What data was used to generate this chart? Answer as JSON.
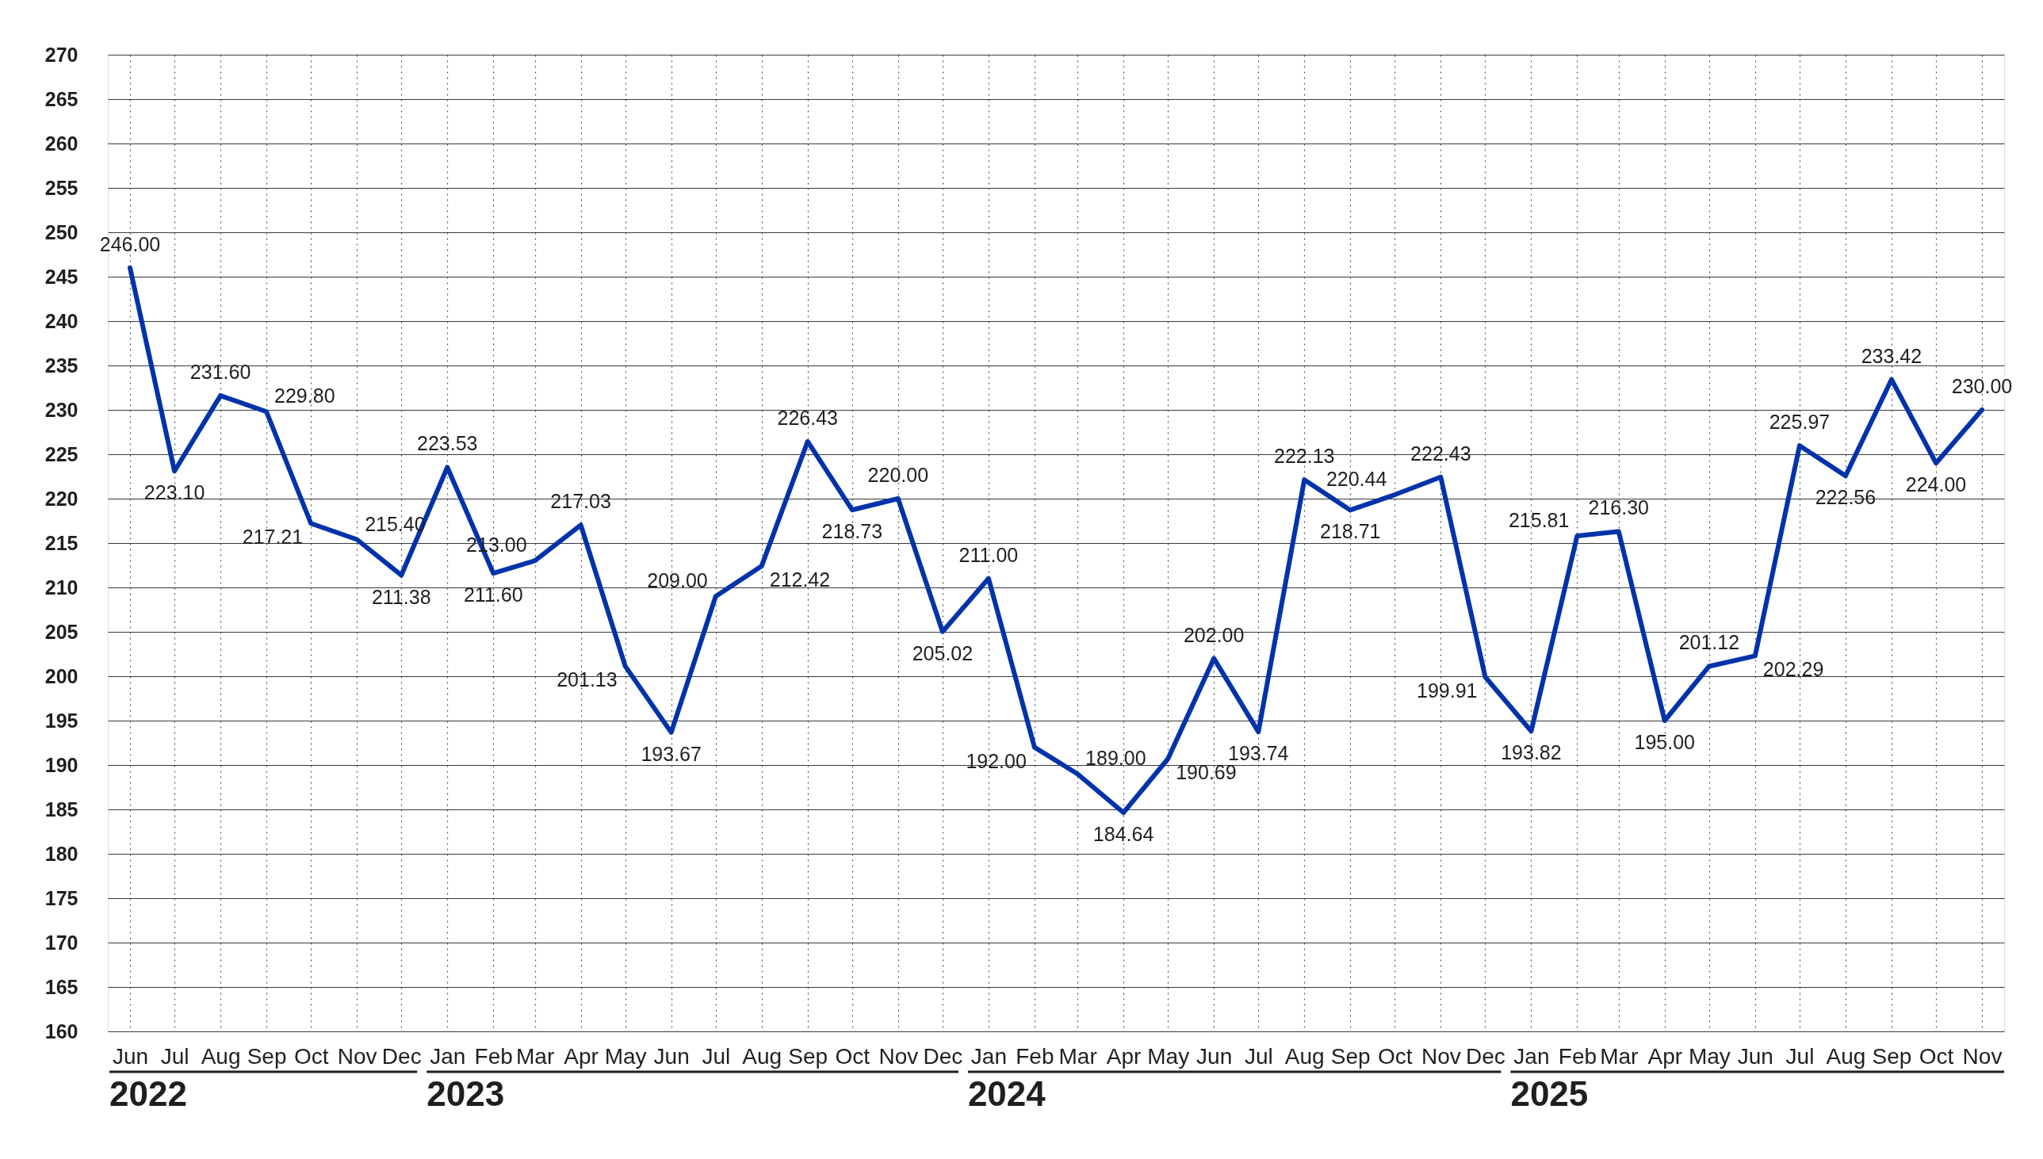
{
  "chart_data": {
    "type": "line",
    "x": [
      "2022-06",
      "2022-07",
      "2022-08",
      "2022-09",
      "2022-10",
      "2022-11",
      "2022-12",
      "2023-01",
      "2023-02",
      "2023-03",
      "2023-04",
      "2023-05",
      "2023-06",
      "2023-07",
      "2023-08",
      "2023-09",
      "2023-10",
      "2023-11",
      "2023-12",
      "2024-01",
      "2024-02",
      "2024-03",
      "2024-04",
      "2024-05",
      "2024-06",
      "2024-07",
      "2024-08",
      "2024-09",
      "2024-10",
      "2024-11",
      "2024-12",
      "2025-01",
      "2025-02",
      "2025-03",
      "2025-04",
      "2025-05",
      "2025-06",
      "2025-07",
      "2025-08",
      "2025-09",
      "2025-10",
      "2025-11"
    ],
    "series": [
      {
        "color": "#0033aa",
        "values": [
          246.0,
          223.1,
          231.6,
          229.8,
          217.21,
          215.4,
          211.38,
          223.53,
          211.6,
          213.0,
          217.03,
          201.13,
          193.67,
          209.0,
          212.42,
          226.43,
          218.73,
          220.0,
          205.02,
          211.0,
          192.0,
          189.0,
          184.64,
          190.69,
          202.0,
          193.74,
          222.13,
          218.71,
          220.44,
          222.43,
          199.91,
          193.82,
          215.81,
          216.3,
          195.0,
          201.12,
          202.29,
          225.97,
          222.56,
          233.42,
          224.0,
          230.0
        ],
        "value_labels": [
          "246.00",
          "223.10",
          "231.60",
          "229.80",
          "217.21",
          "215.40",
          "211.38",
          "223.53",
          "211.60",
          "213.00",
          "217.03",
          "201.13",
          "193.67",
          "209.00",
          "212.42",
          "226.43",
          "218.73",
          "220.00",
          "205.02",
          "211.00",
          "192.00",
          "189.00",
          "184.64",
          "190.69",
          "202.00",
          "193.74",
          "222.13",
          "218.71",
          "220.44",
          "222.43",
          "199.91",
          "193.82",
          "215.81",
          "216.30",
          "195.00",
          "201.12",
          "202.29",
          "225.97",
          "222.56",
          "233.42",
          "224.00",
          "230.00"
        ]
      }
    ],
    "xlim": [
      "2022-06",
      "2025-11"
    ],
    "xticks": [
      {
        "value": "2022-06",
        "label": "Jun"
      },
      {
        "value": "2022-07",
        "label": "Jul"
      },
      {
        "value": "2022-08",
        "label": "Aug"
      },
      {
        "value": "2022-09",
        "label": "Sep"
      },
      {
        "value": "2022-10",
        "label": "Oct"
      },
      {
        "value": "2022-11",
        "label": "Nov"
      },
      {
        "value": "2022-12",
        "label": "Dec"
      },
      {
        "value": "2023-01",
        "label": "Jan"
      },
      {
        "value": "2023-02",
        "label": "Feb"
      },
      {
        "value": "2023-03",
        "label": "Mar"
      },
      {
        "value": "2023-04",
        "label": "Apr"
      },
      {
        "value": "2023-05",
        "label": "May"
      },
      {
        "value": "2023-06",
        "label": "Jun"
      },
      {
        "value": "2023-07",
        "label": "Jul"
      },
      {
        "value": "2023-08",
        "label": "Aug"
      },
      {
        "value": "2023-09",
        "label": "Sep"
      },
      {
        "value": "2023-10",
        "label": "Oct"
      },
      {
        "value": "2023-11",
        "label": "Nov"
      },
      {
        "value": "2023-12",
        "label": "Dec"
      },
      {
        "value": "2024-01",
        "label": "Jan"
      },
      {
        "value": "2024-02",
        "label": "Feb"
      },
      {
        "value": "2024-03",
        "label": "Mar"
      },
      {
        "value": "2024-04",
        "label": "Apr"
      },
      {
        "value": "2024-05",
        "label": "May"
      },
      {
        "value": "2024-06",
        "label": "Jun"
      },
      {
        "value": "2024-07",
        "label": "Jul"
      },
      {
        "value": "2024-08",
        "label": "Aug"
      },
      {
        "value": "2024-09",
        "label": "Sep"
      },
      {
        "value": "2024-10",
        "label": "Oct"
      },
      {
        "value": "2024-11",
        "label": "Nov"
      },
      {
        "value": "2024-12",
        "label": "Dec"
      },
      {
        "value": "2025-01",
        "label": "Jan"
      },
      {
        "value": "2025-02",
        "label": "Feb"
      },
      {
        "value": "2025-03",
        "label": "Mar"
      },
      {
        "value": "2025-04",
        "label": "Apr"
      },
      {
        "value": "2025-05",
        "label": "May"
      },
      {
        "value": "2025-06",
        "label": "Jun"
      },
      {
        "value": "2025-07",
        "label": "Jul"
      },
      {
        "value": "2025-08",
        "label": "Aug"
      },
      {
        "value": "2025-09",
        "label": "Sep"
      },
      {
        "value": "2025-10",
        "label": "Oct"
      },
      {
        "value": "2025-11",
        "label": "Nov"
      }
    ],
    "ylim": [
      160,
      270
    ],
    "yticks": [
      160,
      165,
      170,
      175,
      180,
      185,
      190,
      195,
      200,
      205,
      210,
      215,
      220,
      225,
      230,
      235,
      240,
      245,
      250,
      255,
      260,
      265,
      270
    ],
    "grid": true,
    "marker": "none",
    "line_style": "solid",
    "annotations": [
      "2022",
      "2023",
      "2024",
      "2025"
    ]
  }
}
